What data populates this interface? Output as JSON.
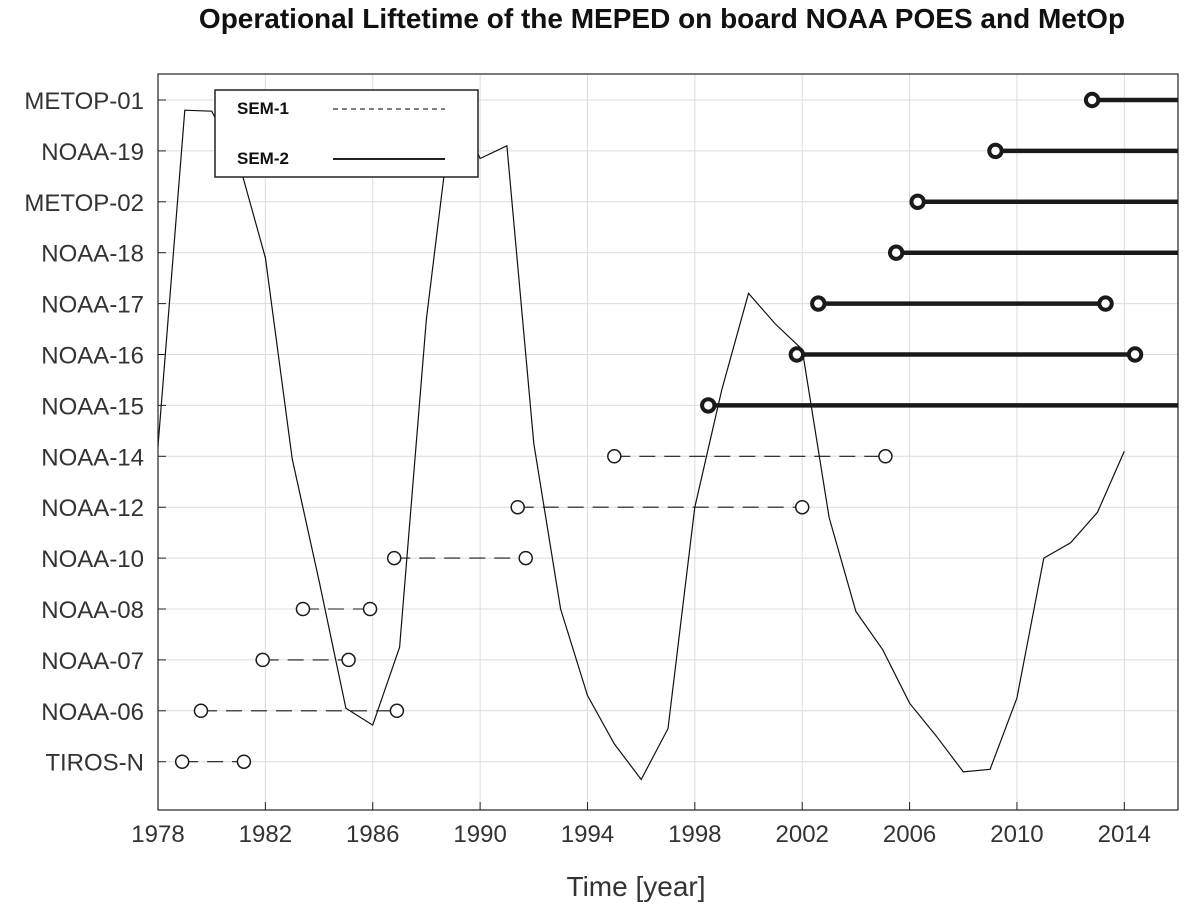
{
  "chart_data": {
    "type": "timeline",
    "title": "Operational Liftetime of the MEPED on board NOAA POES and MetOp",
    "xlabel": "Time [year]",
    "ylabel": "",
    "xlim": [
      1978,
      2016
    ],
    "x_ticks": [
      1978,
      1982,
      1986,
      1990,
      1994,
      1998,
      2002,
      2006,
      2010,
      2014
    ],
    "grid": true,
    "legend": {
      "position": "top-left",
      "entries": [
        {
          "label": "SEM-1",
          "style": "dashed"
        },
        {
          "label": "SEM-2",
          "style": "solid"
        }
      ]
    },
    "satellites": [
      {
        "name": "METOP-01",
        "instrument": "SEM-2",
        "start": 2012.8,
        "end": null
      },
      {
        "name": "NOAA-19",
        "instrument": "SEM-2",
        "start": 2009.2,
        "end": null
      },
      {
        "name": "METOP-02",
        "instrument": "SEM-2",
        "start": 2006.3,
        "end": null
      },
      {
        "name": "NOAA-18",
        "instrument": "SEM-2",
        "start": 2005.5,
        "end": null
      },
      {
        "name": "NOAA-17",
        "instrument": "SEM-2",
        "start": 2002.6,
        "end": 2013.3
      },
      {
        "name": "NOAA-16",
        "instrument": "SEM-2",
        "start": 2001.8,
        "end": 2014.4
      },
      {
        "name": "NOAA-15",
        "instrument": "SEM-2",
        "start": 1998.5,
        "end": null
      },
      {
        "name": "NOAA-14",
        "instrument": "SEM-1",
        "start": 1995.0,
        "end": 2005.1
      },
      {
        "name": "NOAA-12",
        "instrument": "SEM-1",
        "start": 1991.4,
        "end": 2002.0
      },
      {
        "name": "NOAA-10",
        "instrument": "SEM-1",
        "start": 1986.8,
        "end": 1991.7
      },
      {
        "name": "NOAA-08",
        "instrument": "SEM-1",
        "start": 1983.4,
        "end": 1985.9
      },
      {
        "name": "NOAA-07",
        "instrument": "SEM-1",
        "start": 1981.9,
        "end": 1985.1
      },
      {
        "name": "NOAA-06",
        "instrument": "SEM-1",
        "start": 1979.6,
        "end": 1986.9
      },
      {
        "name": "TIROS-N",
        "instrument": "SEM-1",
        "start": 1978.9,
        "end": 1981.2
      }
    ],
    "solar_cycle_curve": {
      "style": "thin-solid",
      "points": [
        [
          1978.0,
          6.2
        ],
        [
          1979.0,
          12.8
        ],
        [
          1980.0,
          12.78
        ],
        [
          1981.0,
          11.8
        ],
        [
          1982.0,
          9.9
        ],
        [
          1983.0,
          5.95
        ],
        [
          1984.0,
          3.55
        ],
        [
          1985.0,
          1.05
        ],
        [
          1986.0,
          0.72
        ],
        [
          1987.0,
          2.25
        ],
        [
          1988.0,
          8.7
        ],
        [
          1989.0,
          13.0
        ],
        [
          1990.0,
          11.85
        ],
        [
          1991.0,
          12.1
        ],
        [
          1992.0,
          6.25
        ],
        [
          1993.0,
          3.0
        ],
        [
          1994.0,
          1.3
        ],
        [
          1995.0,
          0.35
        ],
        [
          1996.0,
          -0.35
        ],
        [
          1997.0,
          0.65
        ],
        [
          1998.0,
          5.0
        ],
        [
          1999.0,
          7.3
        ],
        [
          2000.0,
          9.2
        ],
        [
          2001.0,
          8.6
        ],
        [
          2002.0,
          8.1
        ],
        [
          2003.0,
          4.8
        ],
        [
          2004.0,
          2.95
        ],
        [
          2005.0,
          2.2
        ],
        [
          2006.0,
          1.15
        ],
        [
          2007.0,
          0.5
        ],
        [
          2008.0,
          -0.2
        ],
        [
          2009.0,
          -0.15
        ],
        [
          2010.0,
          1.25
        ],
        [
          2011.0,
          4.0
        ],
        [
          2012.0,
          4.3
        ],
        [
          2013.0,
          4.9
        ],
        [
          2014.0,
          6.1
        ]
      ]
    }
  }
}
